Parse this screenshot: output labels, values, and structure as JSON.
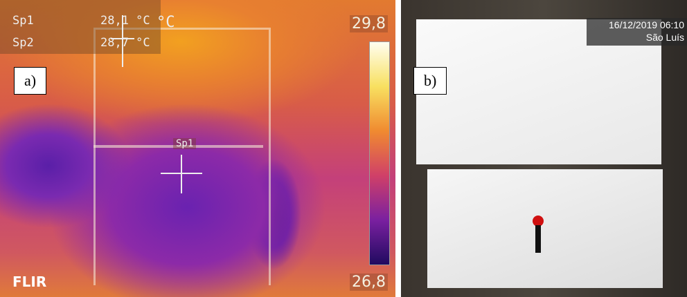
{
  "panel_a": {
    "label": "a)",
    "readouts": [
      {
        "name": "Sp1",
        "value": "28,1 °C"
      },
      {
        "name": "Sp2",
        "value": "28,7 °C"
      }
    ],
    "unit": "°C",
    "scale_max": "29,8",
    "scale_min": "26,8",
    "spot_label": "Sp1",
    "brand": "FLIR"
  },
  "panel_b": {
    "label": "b)",
    "timestamp": "16/12/2019 06:10",
    "location": "São Luís"
  }
}
